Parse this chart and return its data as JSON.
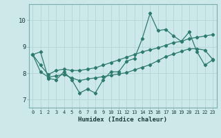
{
  "title": "",
  "xlabel": "Humidex (Indice chaleur)",
  "bg_color": "#cce8e8",
  "grid_color": "#b8d8d8",
  "line_color": "#2d7a6e",
  "xlim": [
    -0.5,
    23.5
  ],
  "ylim": [
    6.7,
    10.6
  ],
  "yticks": [
    7,
    8,
    9,
    10
  ],
  "xticks": [
    0,
    1,
    2,
    3,
    4,
    5,
    6,
    7,
    8,
    9,
    10,
    11,
    12,
    13,
    14,
    15,
    16,
    17,
    18,
    19,
    20,
    21,
    22,
    23
  ],
  "series": [
    [
      8.7,
      8.8,
      7.8,
      7.75,
      8.05,
      7.75,
      7.25,
      7.4,
      7.25,
      7.75,
      8.05,
      8.05,
      8.45,
      8.55,
      9.3,
      10.25,
      9.6,
      9.65,
      9.4,
      9.2,
      9.55,
      8.8,
      8.3,
      8.5
    ],
    [
      8.7,
      8.3,
      7.95,
      8.1,
      8.15,
      8.1,
      8.1,
      8.15,
      8.2,
      8.3,
      8.4,
      8.5,
      8.6,
      8.7,
      8.8,
      8.88,
      8.95,
      9.05,
      9.15,
      9.2,
      9.3,
      9.35,
      9.4,
      9.45
    ],
    [
      8.7,
      8.05,
      7.85,
      7.9,
      7.95,
      7.82,
      7.72,
      7.78,
      7.82,
      7.87,
      7.92,
      7.97,
      8.02,
      8.12,
      8.22,
      8.32,
      8.47,
      8.62,
      8.72,
      8.82,
      8.92,
      8.92,
      8.87,
      8.52
    ]
  ]
}
